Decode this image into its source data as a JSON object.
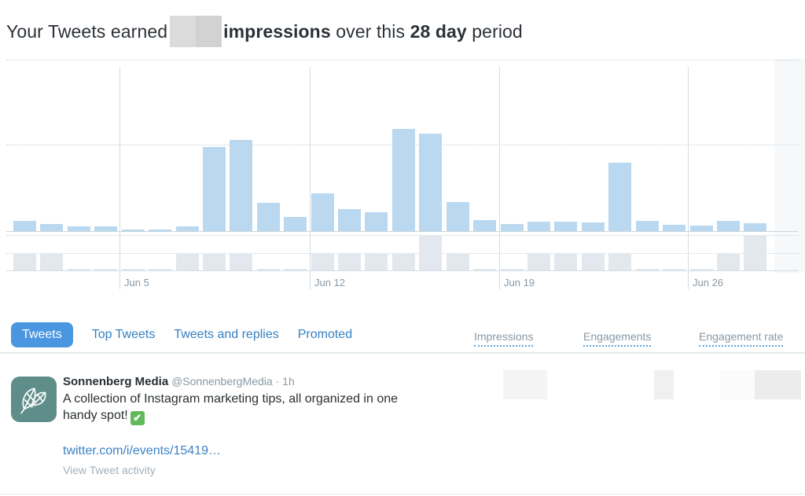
{
  "title": {
    "part1": "Your Tweets earned",
    "part2_bold": "impressions",
    "part3": "over this",
    "part4_bold": "28 day",
    "part5": "period",
    "earned_value_redacted": true
  },
  "chart_data": {
    "type": "bar",
    "title": "Tweet impressions per day over the 28 day period",
    "num_days": 28,
    "x_tick_labels": [
      "Jun 5",
      "Jun 12",
      "Jun 19",
      "Jun 26"
    ],
    "y_axis": "unlabeled; values expressed as percent of plot height",
    "grid": "dotted horizontal gridlines, solid vertical weekly lines",
    "legend": "none",
    "series": [
      {
        "name": "impressions",
        "color": "#bad8f0",
        "values": [
          6.0,
          4.1,
          2.8,
          2.8,
          0.9,
          0.9,
          2.8,
          49.1,
          53.2,
          16.5,
          8.3,
          22.0,
          12.8,
          11.0,
          59.6,
          56.9,
          17.0,
          6.4,
          4.1,
          5.5,
          5.5,
          5.0,
          39.9,
          6.0,
          3.7,
          3.2,
          6.0,
          4.6
        ]
      },
      {
        "name": "lower-panel",
        "color": "#e2e8ee",
        "values": [
          47,
          47,
          4,
          4,
          4,
          4,
          47,
          47,
          47,
          4,
          4,
          47,
          47,
          47,
          47,
          100,
          47,
          4,
          4,
          47,
          47,
          47,
          47,
          4,
          4,
          4,
          47,
          100
        ]
      }
    ]
  },
  "tabs": [
    {
      "label": "Tweets",
      "active": true
    },
    {
      "label": "Top Tweets",
      "active": false
    },
    {
      "label": "Tweets and replies",
      "active": false
    },
    {
      "label": "Promoted",
      "active": false
    }
  ],
  "metric_columns": [
    "Impressions",
    "Engagements",
    "Engagement rate"
  ],
  "tweet": {
    "display_name": "Sonnenberg Media",
    "handle": "@SonnenbergMedia",
    "separator": "·",
    "time": "1h",
    "text": "A collection of Instagram marketing tips, all organized in one handy spot!",
    "emoji": "✅",
    "link": "twitter.com/i/events/15419…",
    "action": "View Tweet activity",
    "metrics_redacted": true
  },
  "colors": {
    "accent_blue": "#4a96e0",
    "link_blue": "#3b82c4",
    "bar_blue": "#bad8f0",
    "bar_gray": "#e2e8ee",
    "text_dark": "#292f33",
    "text_gray": "#8899a6",
    "avatar_teal": "#5f8e8a"
  }
}
